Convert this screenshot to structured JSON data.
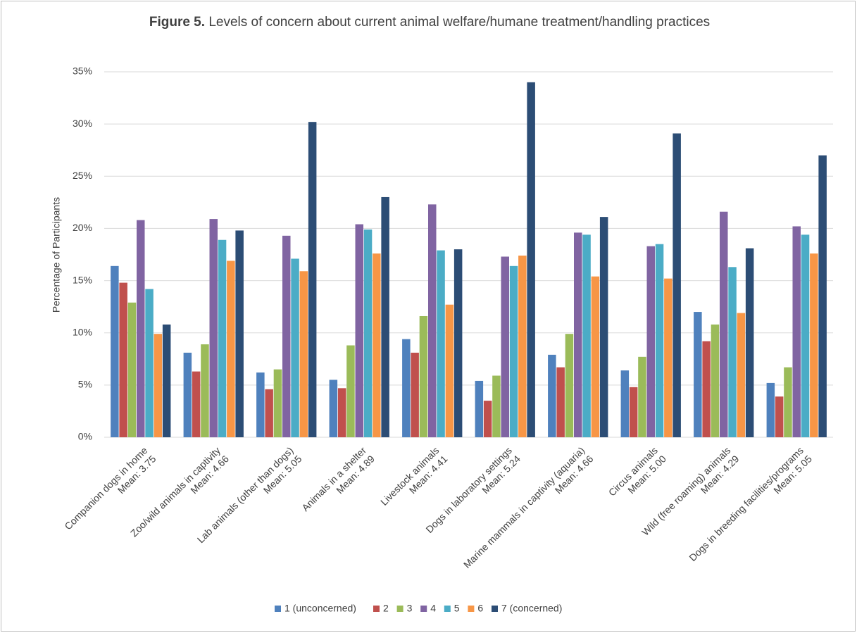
{
  "chart_data": {
    "type": "bar",
    "title_label": "Figure 5.",
    "title": "Levels of concern about current animal welfare/humane treatment/handling practices",
    "y_label": "Percentage of Participants",
    "categories": [
      [
        "Companion dogs in home",
        "Mean: 3.75"
      ],
      [
        "Zoo/wild animals in captivity",
        "Mean: 4.66"
      ],
      [
        "Lab animals (other than dogs)",
        "Mean: 5.05"
      ],
      [
        "Animals in a shelter",
        "Mean: 4.89"
      ],
      [
        "Livestock animals",
        "Mean: 4.41"
      ],
      [
        "Dogs in laboratory settings",
        "Mean: 5.24"
      ],
      [
        "Marine mammals in captivity (aquaria)",
        "Mean: 4.66"
      ],
      [
        "Circus animals",
        "Mean: 5.00"
      ],
      [
        "Wild (free roaming) animals",
        "Mean: 4.29"
      ],
      [
        "Dogs in breeding facilities/programs",
        "Mean: 5.05"
      ]
    ],
    "series": [
      {
        "name": "1 (unconcerned)",
        "color": "#4f81bd",
        "values": [
          16.4,
          8.1,
          6.2,
          5.5,
          9.4,
          5.4,
          7.9,
          6.4,
          12.0,
          5.2
        ]
      },
      {
        "name": "2",
        "color": "#c0504d",
        "values": [
          14.8,
          6.3,
          4.6,
          4.7,
          8.1,
          3.5,
          6.7,
          4.8,
          9.2,
          3.9
        ]
      },
      {
        "name": "3",
        "color": "#9bbb59",
        "values": [
          12.9,
          8.9,
          6.5,
          8.8,
          11.6,
          5.9,
          9.9,
          7.7,
          10.8,
          6.7
        ]
      },
      {
        "name": "4",
        "color": "#8064a2",
        "values": [
          20.8,
          20.9,
          19.3,
          20.4,
          22.3,
          17.3,
          19.6,
          18.3,
          21.6,
          20.2
        ]
      },
      {
        "name": "5",
        "color": "#4bacc6",
        "values": [
          14.2,
          18.9,
          17.1,
          19.9,
          17.9,
          16.4,
          19.4,
          18.5,
          16.3,
          19.4
        ]
      },
      {
        "name": "6",
        "color": "#f79646",
        "values": [
          9.9,
          16.9,
          15.9,
          17.6,
          12.7,
          17.4,
          15.4,
          15.2,
          11.9,
          17.6
        ]
      },
      {
        "name": "7 (concerned)",
        "color": "#2c4d75",
        "values": [
          10.8,
          19.8,
          30.2,
          23.0,
          18.0,
          34.0,
          21.1,
          29.1,
          18.1,
          27.0
        ]
      }
    ],
    "ylim": [
      0,
      35
    ],
    "yticks": [
      {
        "value": 0,
        "label": "0%"
      },
      {
        "value": 5,
        "label": "5%"
      },
      {
        "value": 10,
        "label": "10%"
      },
      {
        "value": 15,
        "label": "15%"
      },
      {
        "value": 20,
        "label": "20%"
      },
      {
        "value": 25,
        "label": "25%"
      },
      {
        "value": 30,
        "label": "30%"
      },
      {
        "value": 35,
        "label": "35%"
      }
    ],
    "grid": true
  }
}
